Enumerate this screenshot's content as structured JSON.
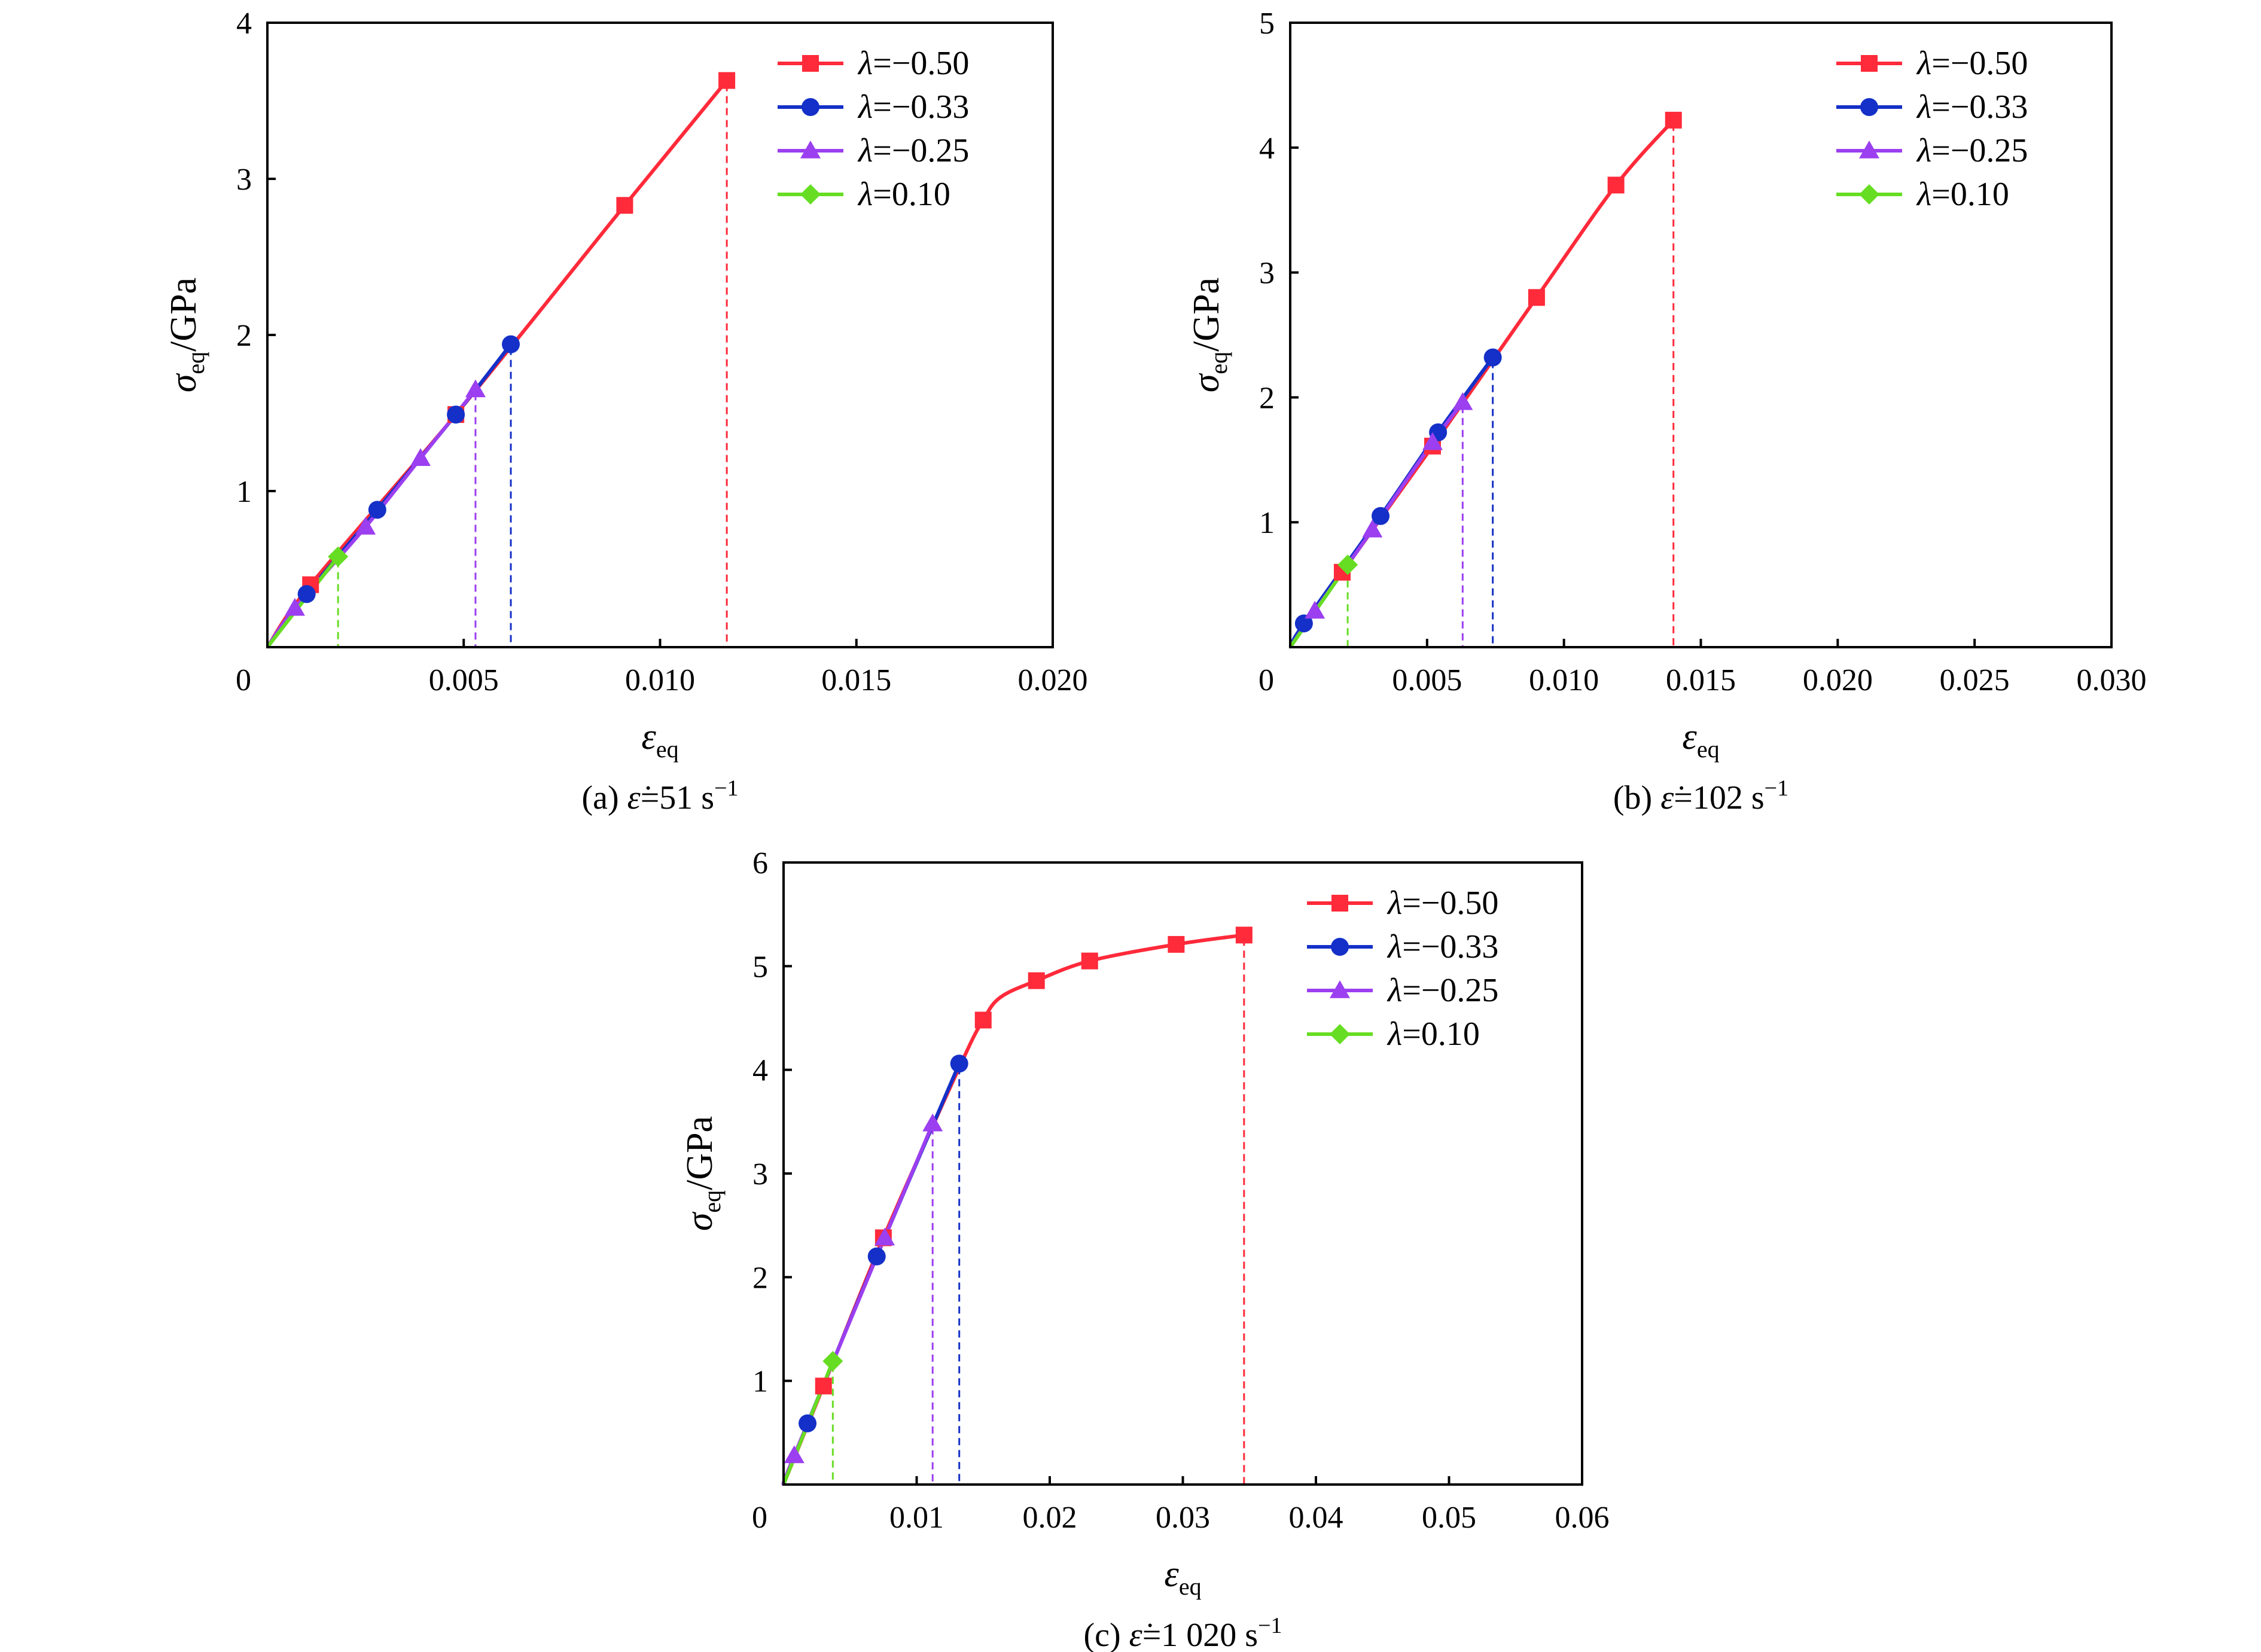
{
  "chart_data": [
    {
      "type": "line",
      "panel_label": "(a)",
      "caption_rate": "51",
      "xlabel": "ε",
      "xlabel_sub": "eq",
      "ylabel": "σ",
      "ylabel_sub": "eq",
      "ylabel_unit": "/GPa",
      "xlim": [
        0,
        0.02
      ],
      "ylim": [
        0,
        4
      ],
      "xticks": [
        0,
        0.005,
        0.01,
        0.015,
        0.02
      ],
      "xtick_labels": [
        "0",
        "0.005",
        "0.010",
        "0.015",
        "0.020"
      ],
      "yticks": [
        1,
        2,
        3,
        4
      ],
      "ytick_labels": [
        "1",
        "2",
        "3",
        "4"
      ],
      "legend_position": "top-right",
      "series": [
        {
          "name": "λ=−0.50",
          "lambda_value": "−0.50",
          "color": "#ff2a3a",
          "marker": "square",
          "points": [
            [
              0,
              0
            ],
            [
              0.0011,
              0.4
            ],
            [
              0.0048,
              1.49
            ],
            [
              0.0091,
              2.83
            ],
            [
              0.0117,
              3.63
            ]
          ],
          "markers": [
            [
              0.0011,
              0.4
            ],
            [
              0.0048,
              1.49
            ],
            [
              0.0091,
              2.83
            ],
            [
              0.0117,
              3.63
            ]
          ],
          "failure_strain": 0.0117
        },
        {
          "name": "λ=−0.33",
          "lambda_value": "−0.33",
          "color": "#1430c8",
          "marker": "circle",
          "points": [
            [
              0,
              0
            ],
            [
              0.001,
              0.34
            ],
            [
              0.0028,
              0.88
            ],
            [
              0.0048,
              1.49
            ],
            [
              0.0062,
              1.94
            ]
          ],
          "markers": [
            [
              0.001,
              0.34
            ],
            [
              0.0028,
              0.88
            ],
            [
              0.0048,
              1.49
            ],
            [
              0.0062,
              1.94
            ]
          ],
          "failure_strain": 0.0062
        },
        {
          "name": "λ=−0.25",
          "lambda_value": "−0.25",
          "color": "#9b3ff0",
          "marker": "triangle",
          "points": [
            [
              0,
              0
            ],
            [
              0.0007,
              0.25
            ],
            [
              0.0025,
              0.77
            ],
            [
              0.0039,
              1.21
            ],
            [
              0.0053,
              1.65
            ]
          ],
          "markers": [
            [
              0.0007,
              0.25
            ],
            [
              0.0025,
              0.77
            ],
            [
              0.0039,
              1.21
            ],
            [
              0.0053,
              1.65
            ]
          ],
          "failure_strain": 0.0053
        },
        {
          "name": "λ=0.10",
          "lambda_value": "0.10",
          "color": "#66dd22",
          "marker": "diamond",
          "points": [
            [
              0,
              0
            ],
            [
              0.0018,
              0.58
            ]
          ],
          "markers": [
            [
              0.0018,
              0.58
            ]
          ],
          "failure_strain": 0.0018
        }
      ]
    },
    {
      "type": "line",
      "panel_label": "(b)",
      "caption_rate": "102",
      "xlabel": "ε",
      "xlabel_sub": "eq",
      "ylabel": "σ",
      "ylabel_sub": "eq",
      "ylabel_unit": "/GPa",
      "xlim": [
        0,
        0.03
      ],
      "ylim": [
        0,
        5
      ],
      "xticks": [
        0,
        0.005,
        0.01,
        0.015,
        0.02,
        0.025,
        0.03
      ],
      "xtick_labels": [
        "0",
        "0.005",
        "0.010",
        "0.015",
        "0.020",
        "0.025",
        "0.030"
      ],
      "yticks": [
        1,
        2,
        3,
        4,
        5
      ],
      "ytick_labels": [
        "1",
        "2",
        "3",
        "4",
        "5"
      ],
      "legend_position": "top-right",
      "series": [
        {
          "name": "λ=−0.50",
          "lambda_value": "−0.50",
          "color": "#ff2a3a",
          "marker": "square",
          "points": [
            [
              0,
              0
            ],
            [
              0.0019,
              0.6
            ],
            [
              0.0052,
              1.61
            ],
            [
              0.009,
              2.8
            ],
            [
              0.0119,
              3.7
            ],
            [
              0.014,
              4.22
            ]
          ],
          "markers": [
            [
              0.0019,
              0.6
            ],
            [
              0.0052,
              1.61
            ],
            [
              0.009,
              2.8
            ],
            [
              0.0119,
              3.7
            ],
            [
              0.014,
              4.22
            ]
          ],
          "failure_strain": 0.014
        },
        {
          "name": "λ=−0.33",
          "lambda_value": "−0.33",
          "color": "#1430c8",
          "marker": "circle",
          "points": [
            [
              0,
              0
            ],
            [
              0.0005,
              0.19
            ],
            [
              0.0033,
              1.05
            ],
            [
              0.0054,
              1.72
            ],
            [
              0.0074,
              2.32
            ]
          ],
          "markers": [
            [
              0.0005,
              0.19
            ],
            [
              0.0033,
              1.05
            ],
            [
              0.0054,
              1.72
            ],
            [
              0.0074,
              2.32
            ]
          ],
          "failure_strain": 0.0074
        },
        {
          "name": "λ=−0.25",
          "lambda_value": "−0.25",
          "color": "#9b3ff0",
          "marker": "triangle",
          "points": [
            [
              0,
              0
            ],
            [
              0.0009,
              0.29
            ],
            [
              0.003,
              0.94
            ],
            [
              0.0052,
              1.64
            ],
            [
              0.0063,
              1.96
            ]
          ],
          "markers": [
            [
              0.0009,
              0.29
            ],
            [
              0.003,
              0.94
            ],
            [
              0.0052,
              1.64
            ],
            [
              0.0063,
              1.96
            ]
          ],
          "failure_strain": 0.0063
        },
        {
          "name": "λ=0.10",
          "lambda_value": "0.10",
          "color": "#66dd22",
          "marker": "diamond",
          "points": [
            [
              0,
              0
            ],
            [
              0.0021,
              0.66
            ]
          ],
          "markers": [
            [
              0.0021,
              0.66
            ]
          ],
          "failure_strain": 0.0021
        }
      ]
    },
    {
      "type": "line",
      "panel_label": "(c)",
      "caption_rate": "1 020",
      "xlabel": "ε",
      "xlabel_sub": "eq",
      "ylabel": "σ",
      "ylabel_sub": "eq",
      "ylabel_unit": "/GPa",
      "xlim": [
        0,
        0.06
      ],
      "ylim": [
        0,
        6
      ],
      "xticks": [
        0,
        0.01,
        0.02,
        0.03,
        0.04,
        0.05,
        0.06
      ],
      "xtick_labels": [
        "0",
        "0.01",
        "0.02",
        "0.03",
        "0.04",
        "0.05",
        "0.06"
      ],
      "yticks": [
        1,
        2,
        3,
        4,
        5,
        6
      ],
      "ytick_labels": [
        "1",
        "2",
        "3",
        "4",
        "5",
        "6"
      ],
      "legend_position": "top-right",
      "series": [
        {
          "name": "λ=−0.50",
          "lambda_value": "−0.50",
          "color": "#ff2a3a",
          "marker": "square",
          "points": [
            [
              0,
              0
            ],
            [
              0.003,
              0.95
            ],
            [
              0.0075,
              2.38
            ],
            [
              0.0133,
              4.05
            ],
            [
              0.015,
              4.48
            ],
            [
              0.0163,
              4.7
            ],
            [
              0.019,
              4.86
            ],
            [
              0.023,
              5.05
            ],
            [
              0.0295,
              5.21
            ],
            [
              0.0346,
              5.3
            ]
          ],
          "markers": [
            [
              0.003,
              0.95
            ],
            [
              0.0075,
              2.38
            ],
            [
              0.015,
              4.48
            ],
            [
              0.019,
              4.86
            ],
            [
              0.023,
              5.05
            ],
            [
              0.0295,
              5.21
            ],
            [
              0.0346,
              5.3
            ]
          ],
          "failure_strain": 0.0346
        },
        {
          "name": "λ=−0.33",
          "lambda_value": "−0.33",
          "color": "#1430c8",
          "marker": "circle",
          "points": [
            [
              0,
              0
            ],
            [
              0.0018,
              0.59
            ],
            [
              0.007,
              2.2
            ],
            [
              0.0132,
              4.06
            ]
          ],
          "markers": [
            [
              0.0018,
              0.59
            ],
            [
              0.007,
              2.2
            ],
            [
              0.0132,
              4.06
            ]
          ],
          "failure_strain": 0.0132
        },
        {
          "name": "λ=−0.25",
          "lambda_value": "−0.25",
          "color": "#9b3ff0",
          "marker": "triangle",
          "points": [
            [
              0,
              0
            ],
            [
              0.0008,
              0.28
            ],
            [
              0.0076,
              2.38
            ],
            [
              0.0112,
              3.48
            ]
          ],
          "markers": [
            [
              0.0008,
              0.28
            ],
            [
              0.0076,
              2.38
            ],
            [
              0.0112,
              3.48
            ]
          ],
          "failure_strain": 0.0112
        },
        {
          "name": "λ=0.10",
          "lambda_value": "0.10",
          "color": "#66dd22",
          "marker": "diamond",
          "points": [
            [
              0,
              0
            ],
            [
              0.0037,
              1.19
            ]
          ],
          "markers": [
            [
              0.0037,
              1.19
            ]
          ],
          "failure_strain": 0.0037
        }
      ]
    }
  ]
}
